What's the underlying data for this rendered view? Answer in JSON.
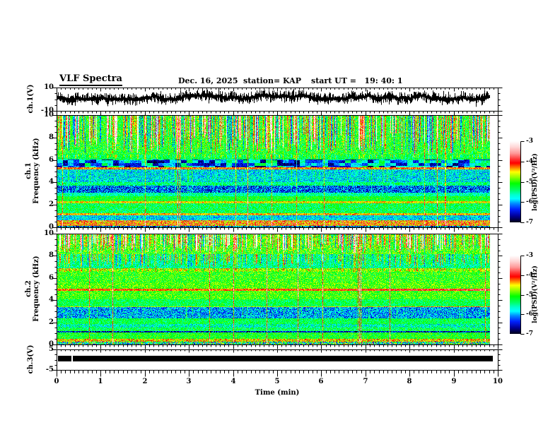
{
  "header": {
    "title": "VLF Spectra",
    "date": "Dec. 16, 2025",
    "station": "station= KAP",
    "start_ut": "start UT =   19: 40: 1"
  },
  "axes": {
    "x": {
      "label": "Time (min)",
      "min": 0,
      "max": 10,
      "tick_labels": [
        "0",
        "1",
        "2",
        "3",
        "4",
        "5",
        "6",
        "7",
        "8",
        "9",
        "10"
      ],
      "tick_values": [
        0,
        1,
        2,
        3,
        4,
        5,
        6,
        7,
        8,
        9,
        10
      ],
      "minor_step": 0.1
    },
    "wave1_y": {
      "label": "ch.1(V)",
      "min": -10,
      "max": 10,
      "tick_labels": [
        "10",
        "-10"
      ],
      "tick_values": [
        10,
        -10
      ],
      "minor_values": [
        5,
        0,
        -5
      ]
    },
    "spec1_y": {
      "label_line1": "ch.1",
      "label_line2": "Frequency (kHz)",
      "min": 0,
      "max": 10,
      "tick_labels": [
        "0",
        "2",
        "4",
        "6",
        "8",
        "10"
      ],
      "tick_values": [
        0,
        2,
        4,
        6,
        8,
        10
      ],
      "minor_step": 0.5
    },
    "spec2_y": {
      "label_line1": "ch.2",
      "label_line2": "Frequency (kHz)",
      "min": 0,
      "max": 10,
      "tick_labels": [
        "0",
        "2",
        "4",
        "6",
        "8",
        "10"
      ],
      "tick_values": [
        0,
        2,
        4,
        6,
        8,
        10
      ],
      "minor_step": 0.5
    },
    "wave3_y": {
      "label": "ch.3(V)",
      "min": -5,
      "max": 5,
      "tick_labels": [
        "5",
        "-5"
      ],
      "tick_values": [
        5,
        -5
      ],
      "minor_values": [
        2.5,
        0,
        -2.5
      ]
    }
  },
  "colorbar": {
    "label": "log(PSD)(V²/Hz)",
    "tick_labels": [
      "-3",
      "-4",
      "-5",
      "-6",
      "-7"
    ],
    "tick_values": [
      -3,
      -4,
      -5,
      -6,
      -7
    ],
    "zmin": -7,
    "zmax": -3,
    "gradient": [
      [
        0.0,
        "#ffffff"
      ],
      [
        0.07,
        "#ffd8d8"
      ],
      [
        0.15,
        "#ff9898"
      ],
      [
        0.22,
        "#ff3838"
      ],
      [
        0.27,
        "#ff0000"
      ],
      [
        0.33,
        "#ff8800"
      ],
      [
        0.38,
        "#ffff00"
      ],
      [
        0.45,
        "#88ff00"
      ],
      [
        0.52,
        "#00ff00"
      ],
      [
        0.6,
        "#00ff66"
      ],
      [
        0.66,
        "#00ffcc"
      ],
      [
        0.71,
        "#00ffff"
      ],
      [
        0.77,
        "#0088ff"
      ],
      [
        0.84,
        "#0022ff"
      ],
      [
        0.92,
        "#000099"
      ],
      [
        1.0,
        "#000014"
      ]
    ]
  },
  "chart_data": [
    {
      "type": "line",
      "name": "ch1_waveform",
      "ylabel": "ch.1(V)",
      "x_range_min": [
        0,
        10
      ],
      "ylim": [
        -10,
        10
      ],
      "data_end_min": 9.83,
      "description": "continuous broadband noise trace, band roughly -3 to +7 V with spikes",
      "noise_center_V": 1.5,
      "noise_halfband_V": 3.5,
      "spike_extent_V": 2.5,
      "seed": 11
    },
    {
      "type": "heatmap",
      "name": "ch1_spectrogram",
      "ylabel": "ch.1 Frequency (kHz)",
      "x_range_min": [
        0,
        10
      ],
      "y_range_kHz": [
        0,
        10
      ],
      "zlim": [
        -7,
        -3
      ],
      "z_label": "log(PSD)(V²/Hz)",
      "data_end_min": 9.83,
      "seed": 21,
      "streaks": {
        "bright_prob": 0.48,
        "bright_max": 2.2,
        "dark_prob": 0.14,
        "dark_level": -0.9,
        "full_line_prob": 0.02
      },
      "bands": [
        {
          "lo": 6.5,
          "hi": 10.01,
          "level": -5.15,
          "noise": 0.5,
          "streak": 1.0
        },
        {
          "lo": 6.05,
          "hi": 6.5,
          "level": -5.3,
          "noise": 0.35,
          "streak": 0.35
        },
        {
          "lo": 5.35,
          "hi": 6.05,
          "level": -5.2,
          "noise": 0.25,
          "blob": 1.7
        },
        {
          "lo": 5.15,
          "hi": 5.35,
          "level": -4.3,
          "noise": 0.4
        },
        {
          "lo": 4.0,
          "hi": 5.15,
          "level": -5.8,
          "noise": 0.5,
          "vline": 0.6
        },
        {
          "lo": 3.7,
          "hi": 4.0,
          "level": -5.45,
          "noise": 0.45
        },
        {
          "lo": 3.1,
          "hi": 3.7,
          "level": -6.25,
          "noise": 0.6,
          "vline": 0.5
        },
        {
          "lo": 2.75,
          "hi": 3.1,
          "level": -5.55,
          "noise": 0.4
        },
        {
          "lo": 2.3,
          "hi": 2.75,
          "level": -5.15,
          "noise": 0.35
        },
        {
          "lo": 2.15,
          "hi": 2.3,
          "level": -4.55,
          "noise": 0.4
        },
        {
          "lo": 1.25,
          "hi": 2.15,
          "level": -5.3,
          "noise": 0.45
        },
        {
          "lo": 1.05,
          "hi": 1.25,
          "level": -4.45,
          "noise": 0.4
        },
        {
          "lo": 0.6,
          "hi": 1.05,
          "level": -5.85,
          "noise": 0.45
        },
        {
          "lo": 0.1,
          "hi": 0.6,
          "level": -4.25,
          "noise": 0.65
        },
        {
          "lo": 0.0,
          "hi": 0.1,
          "level": -6.3,
          "noise": 1.0
        }
      ]
    },
    {
      "type": "heatmap",
      "name": "ch2_spectrogram",
      "ylabel": "ch.2 Frequency (kHz)",
      "x_range_min": [
        0,
        10
      ],
      "y_range_kHz": [
        0,
        10
      ],
      "zlim": [
        -7,
        -3
      ],
      "z_label": "log(PSD)(V²/Hz)",
      "data_end_min": 9.83,
      "seed": 31,
      "streaks": {
        "bright_prob": 0.5,
        "bright_max": 2.4,
        "dark_prob": 0.1,
        "dark_level": -0.8,
        "full_line_prob": 0.02
      },
      "bands": [
        {
          "lo": 8.2,
          "hi": 10.01,
          "level": -5.0,
          "noise": 0.55,
          "streak": 1.0
        },
        {
          "lo": 6.9,
          "hi": 8.2,
          "level": -5.5,
          "noise": 0.5,
          "streak": 0.55
        },
        {
          "lo": 6.55,
          "hi": 6.9,
          "level": -4.85,
          "noise": 0.45,
          "streak": 0.3
        },
        {
          "lo": 5.6,
          "hi": 6.55,
          "level": -5.05,
          "noise": 0.45
        },
        {
          "lo": 5.05,
          "hi": 5.6,
          "level": -4.95,
          "noise": 0.4
        },
        {
          "lo": 4.85,
          "hi": 5.05,
          "level": -4.2,
          "noise": 0.35,
          "right_boost": 0.35
        },
        {
          "lo": 4.1,
          "hi": 4.85,
          "level": -5.0,
          "noise": 0.4
        },
        {
          "lo": 3.45,
          "hi": 4.1,
          "level": -5.3,
          "noise": 0.4
        },
        {
          "lo": 3.35,
          "hi": 3.45,
          "level": -4.7,
          "noise": 0.4,
          "right_boost": 0.5
        },
        {
          "lo": 2.35,
          "hi": 3.35,
          "level": -6.0,
          "noise": 0.6,
          "vline": 0.5
        },
        {
          "lo": 1.85,
          "hi": 2.35,
          "level": -5.3,
          "noise": 0.4
        },
        {
          "lo": 1.5,
          "hi": 1.85,
          "level": -5.6,
          "noise": 0.55
        },
        {
          "lo": 1.2,
          "hi": 1.5,
          "level": -5.3,
          "noise": 0.45
        },
        {
          "lo": 1.05,
          "hi": 1.2,
          "level": -6.5,
          "noise": 0.6
        },
        {
          "lo": 0.45,
          "hi": 1.05,
          "level": -5.15,
          "noise": 0.4
        },
        {
          "lo": 0.2,
          "hi": 0.45,
          "level": -4.5,
          "noise": 0.55
        },
        {
          "lo": 0.0,
          "hi": 0.2,
          "level": -5.4,
          "noise": 1.2
        }
      ]
    },
    {
      "type": "line",
      "name": "ch3_waveform",
      "ylabel": "ch.3(V)",
      "x_range_min": [
        0,
        10
      ],
      "ylim": [
        -5,
        5
      ],
      "description": "saturated/clipped signal rendered as a solid black bar",
      "bar_v_top": 1.9,
      "bar_v_bottom": -1.0,
      "bar_start_min": 0.03,
      "bar_end_min": 9.88,
      "gaps_min": [
        [
          0.34,
          0.38
        ]
      ]
    }
  ]
}
